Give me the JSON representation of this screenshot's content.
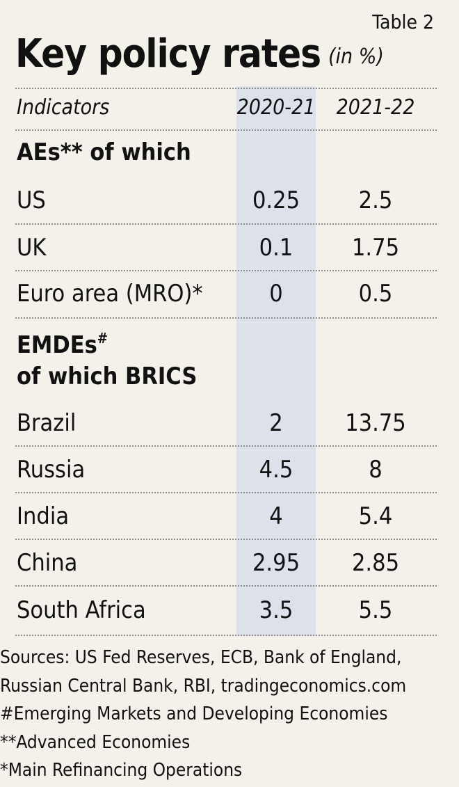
{
  "header": {
    "table_label": "Table 2",
    "title": "Key policy rates",
    "unit": "(in %)"
  },
  "chart_data": {
    "type": "table",
    "title": "Key policy rates",
    "unit": "(in %)",
    "columns": [
      "Indicators",
      "2020-21",
      "2021-22"
    ],
    "groups": [
      {
        "label": "AEs** of which",
        "rows": [
          {
            "label": "US",
            "v2020_21": "0.25",
            "v2021_22": "2.5"
          },
          {
            "label": "UK",
            "v2020_21": "0.1",
            "v2021_22": "1.75"
          },
          {
            "label": "Euro area (MRO)*",
            "v2020_21": "0",
            "v2021_22": "0.5"
          }
        ]
      },
      {
        "label_line1": "EMDEs",
        "label_line1_sup": "#",
        "label_line2": "of which BRICS",
        "rows": [
          {
            "label": "Brazil",
            "v2020_21": "2",
            "v2021_22": "13.75"
          },
          {
            "label": "Russia",
            "v2020_21": "4.5",
            "v2021_22": "8"
          },
          {
            "label": "India",
            "v2020_21": "4",
            "v2021_22": "5.4"
          },
          {
            "label": "China",
            "v2020_21": "2.95",
            "v2021_22": "2.85"
          },
          {
            "label": "South Africa",
            "v2020_21": "3.5",
            "v2021_22": "5.5"
          }
        ]
      }
    ]
  },
  "footnotes": {
    "sources_line1": "Sources: US Fed Reserves, ECB, Bank of England,",
    "sources_line2": "Russian Central Bank, RBI, tradingeconomics.com",
    "emdes": "#Emerging Markets and Developing Economies",
    "aes": "**Advanced Economies",
    "mro": "*Main Refinancing Operations"
  }
}
